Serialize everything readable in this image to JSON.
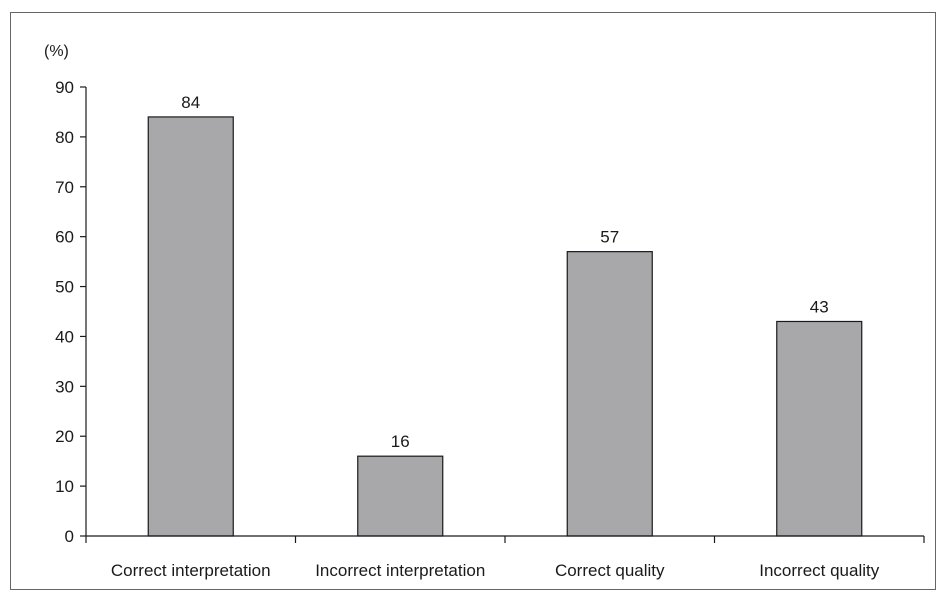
{
  "chart_data": {
    "type": "bar",
    "categories": [
      "Correct interpretation",
      "Incorrect interpretation",
      "Correct quality",
      "Incorrect quality"
    ],
    "values": [
      84,
      16,
      57,
      43
    ],
    "data_labels": [
      "84",
      "16",
      "57",
      "43"
    ],
    "ylabel": "(%)",
    "xlabel": "",
    "ylim": [
      0,
      90
    ],
    "yticks": [
      "0",
      "10",
      "20",
      "30",
      "40",
      "50",
      "60",
      "70",
      "80",
      "90"
    ],
    "grid": false,
    "legend": "none",
    "bar_color": "#a8a8ab",
    "bar_edge_color": "#1a1a1a"
  }
}
